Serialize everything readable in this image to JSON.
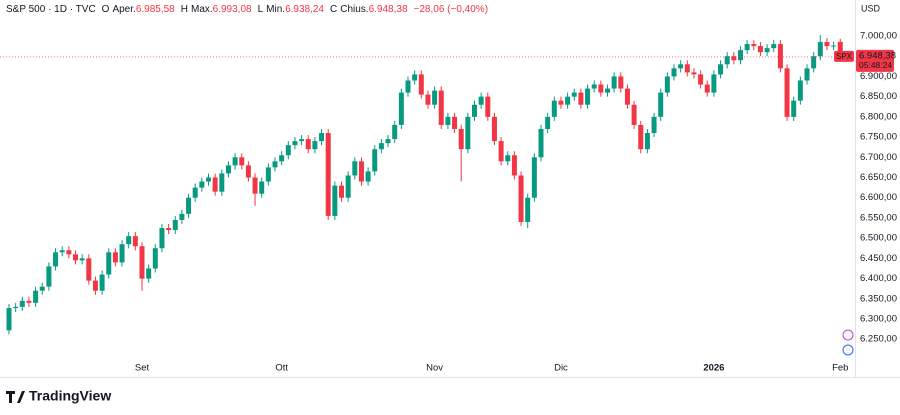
{
  "chart_data": {
    "type": "candlestick",
    "title": "S&P 500 · 1D · TVC",
    "ohlc_header": [
      {
        "key": "O",
        "label": "Aper.",
        "value": "6.985,58"
      },
      {
        "key": "H",
        "label": "Max.",
        "value": "6.993,08"
      },
      {
        "key": "L",
        "label": "Min.",
        "value": "6.938,24"
      },
      {
        "key": "C",
        "label": "Chius.",
        "value": "6.948,38"
      }
    ],
    "change": "−28,06 (−0,40%)",
    "currency": "USD",
    "last_price_label": "6.948,38",
    "countdown": "05:48:24",
    "brand": "TradingView",
    "up_color": "#089981",
    "down_color": "#f23645",
    "grid": false,
    "ylim": [
      6161.5,
      7034.6
    ],
    "yticks": [
      {
        "value": 6250,
        "label": "6.250,00"
      },
      {
        "value": 6300,
        "label": "6.300,00"
      },
      {
        "value": 6350,
        "label": "6.350,00"
      },
      {
        "value": 6400,
        "label": "6.400,00"
      },
      {
        "value": 6450,
        "label": "6.450,00"
      },
      {
        "value": 6500,
        "label": "6.500,00"
      },
      {
        "value": 6550,
        "label": "6.550,00"
      },
      {
        "value": 6600,
        "label": "6.600,00"
      },
      {
        "value": 6650,
        "label": "6.650,00"
      },
      {
        "value": 6700,
        "label": "6.700,00"
      },
      {
        "value": 6750,
        "label": "6.750,00"
      },
      {
        "value": 6800,
        "label": "6.800,00"
      },
      {
        "value": 6850,
        "label": "6.850,00"
      },
      {
        "value": 6900,
        "label": "6.900,00"
      },
      {
        "value": 7000,
        "label": "7.000,00"
      }
    ],
    "categories": [
      null,
      null,
      null,
      null,
      null,
      null,
      null,
      null,
      null,
      null,
      null,
      null,
      null,
      null,
      null,
      null,
      null,
      null,
      null,
      null,
      "Set",
      null,
      null,
      null,
      null,
      null,
      null,
      null,
      null,
      null,
      null,
      null,
      null,
      null,
      null,
      null,
      null,
      null,
      null,
      null,
      null,
      "Ott",
      null,
      null,
      null,
      null,
      null,
      null,
      null,
      null,
      null,
      null,
      null,
      null,
      null,
      null,
      null,
      null,
      null,
      null,
      null,
      null,
      null,
      null,
      "Nov",
      null,
      null,
      null,
      null,
      null,
      null,
      null,
      null,
      null,
      null,
      null,
      null,
      null,
      null,
      null,
      null,
      null,
      null,
      "Dic",
      null,
      null,
      null,
      null,
      null,
      null,
      null,
      null,
      null,
      null,
      null,
      null,
      null,
      null,
      null,
      null,
      null,
      null,
      null,
      null,
      null,
      null,
      "2026",
      null,
      null,
      null,
      null,
      null,
      null,
      null,
      null,
      null,
      null,
      null,
      null,
      null,
      null,
      null,
      null,
      null,
      null,
      "Feb"
    ],
    "series": [
      {
        "name": "SPX",
        "open": [
          6272,
          6327,
          6330,
          6345,
          6340,
          6370,
          6380,
          6430,
          6465,
          6470,
          6460,
          6445,
          6450,
          6395,
          6370,
          6410,
          6465,
          6440,
          6485,
          6505,
          6480,
          6400,
          6425,
          6475,
          6525,
          6520,
          6545,
          6560,
          6600,
          6625,
          6640,
          6650,
          6615,
          6660,
          6680,
          6700,
          6680,
          6650,
          6610,
          6640,
          6675,
          6690,
          6705,
          6730,
          6740,
          6745,
          6720,
          6740,
          6760,
          6555,
          6630,
          6600,
          6655,
          6690,
          6640,
          6665,
          6720,
          6735,
          6745,
          6780,
          6860,
          6890,
          6905,
          6855,
          6830,
          6865,
          6780,
          6800,
          6770,
          6720,
          6800,
          6830,
          6850,
          6800,
          6740,
          6690,
          6705,
          6655,
          6540,
          6600,
          6700,
          6770,
          6800,
          6840,
          6830,
          6850,
          6860,
          6830,
          6870,
          6880,
          6860,
          6870,
          6900,
          6870,
          6830,
          6780,
          6720,
          6760,
          6800,
          6860,
          6900,
          6920,
          6930,
          6910,
          6905,
          6880,
          6860,
          6905,
          6930,
          6950,
          6940,
          6965,
          6980,
          6975,
          6960,
          6970,
          6980,
          6920,
          6800,
          6840,
          6890,
          6920,
          6950,
          6985,
          6975,
          6985.58
        ],
        "high": [
          6337,
          6340,
          6355,
          6355,
          6380,
          6390,
          6440,
          6475,
          6480,
          6480,
          6470,
          6460,
          6460,
          6405,
          6420,
          6475,
          6475,
          6495,
          6515,
          6515,
          6490,
          6435,
          6485,
          6535,
          6535,
          6555,
          6570,
          6610,
          6635,
          6650,
          6660,
          6660,
          6670,
          6690,
          6710,
          6710,
          6690,
          6660,
          6650,
          6685,
          6700,
          6715,
          6740,
          6750,
          6755,
          6755,
          6750,
          6770,
          6770,
          6640,
          6640,
          6665,
          6700,
          6700,
          6675,
          6730,
          6745,
          6755,
          6790,
          6870,
          6900,
          6915,
          6915,
          6865,
          6875,
          6875,
          6810,
          6810,
          6780,
          6810,
          6840,
          6860,
          6860,
          6810,
          6750,
          6715,
          6715,
          6665,
          6610,
          6710,
          6780,
          6810,
          6850,
          6850,
          6860,
          6870,
          6870,
          6880,
          6890,
          6890,
          6880,
          6910,
          6910,
          6880,
          6840,
          6790,
          6770,
          6810,
          6870,
          6910,
          6930,
          6940,
          6940,
          6920,
          6915,
          6890,
          6915,
          6940,
          6960,
          6960,
          6975,
          6990,
          6990,
          6985,
          6980,
          6990,
          6990,
          6930,
          6850,
          6900,
          6930,
          6960,
          7002,
          6995,
          6986,
          6993.08
        ],
        "low": [
          6262,
          6317,
          6320,
          6330,
          6330,
          6360,
          6370,
          6420,
          6455,
          6450,
          6435,
          6435,
          6385,
          6360,
          6360,
          6400,
          6430,
          6430,
          6475,
          6470,
          6370,
          6390,
          6415,
          6465,
          6510,
          6510,
          6535,
          6550,
          6590,
          6615,
          6630,
          6605,
          6605,
          6650,
          6670,
          6670,
          6640,
          6580,
          6600,
          6630,
          6665,
          6680,
          6695,
          6720,
          6730,
          6710,
          6710,
          6730,
          6545,
          6545,
          6590,
          6590,
          6645,
          6630,
          6630,
          6655,
          6710,
          6725,
          6735,
          6770,
          6850,
          6880,
          6845,
          6820,
          6820,
          6770,
          6770,
          6760,
          6640,
          6710,
          6790,
          6820,
          6790,
          6730,
          6680,
          6680,
          6645,
          6530,
          6525,
          6590,
          6690,
          6760,
          6790,
          6820,
          6820,
          6840,
          6820,
          6820,
          6860,
          6850,
          6850,
          6860,
          6860,
          6820,
          6770,
          6710,
          6710,
          6750,
          6790,
          6850,
          6890,
          6910,
          6900,
          6895,
          6870,
          6850,
          6850,
          6895,
          6920,
          6930,
          6930,
          6955,
          6965,
          6950,
          6950,
          6960,
          6910,
          6790,
          6790,
          6830,
          6880,
          6910,
          6940,
          6965,
          6965,
          6938.24
        ],
        "close": [
          6327,
          6330,
          6345,
          6340,
          6370,
          6380,
          6430,
          6465,
          6470,
          6460,
          6445,
          6450,
          6395,
          6370,
          6410,
          6465,
          6440,
          6485,
          6505,
          6480,
          6400,
          6425,
          6475,
          6525,
          6520,
          6545,
          6560,
          6600,
          6625,
          6640,
          6650,
          6615,
          6660,
          6680,
          6700,
          6680,
          6650,
          6610,
          6640,
          6675,
          6690,
          6705,
          6730,
          6740,
          6745,
          6720,
          6740,
          6760,
          6555,
          6630,
          6600,
          6655,
          6690,
          6640,
          6665,
          6720,
          6735,
          6745,
          6780,
          6860,
          6890,
          6905,
          6855,
          6830,
          6865,
          6780,
          6800,
          6770,
          6720,
          6800,
          6830,
          6850,
          6800,
          6740,
          6690,
          6705,
          6655,
          6540,
          6600,
          6700,
          6770,
          6800,
          6840,
          6830,
          6850,
          6860,
          6830,
          6870,
          6880,
          6860,
          6870,
          6900,
          6870,
          6830,
          6780,
          6720,
          6760,
          6800,
          6860,
          6900,
          6920,
          6930,
          6910,
          6905,
          6880,
          6860,
          6905,
          6930,
          6950,
          6940,
          6965,
          6980,
          6975,
          6960,
          6970,
          6980,
          6920,
          6800,
          6840,
          6890,
          6920,
          6950,
          6985,
          6975,
          6976.44,
          6948.38
        ]
      }
    ]
  }
}
